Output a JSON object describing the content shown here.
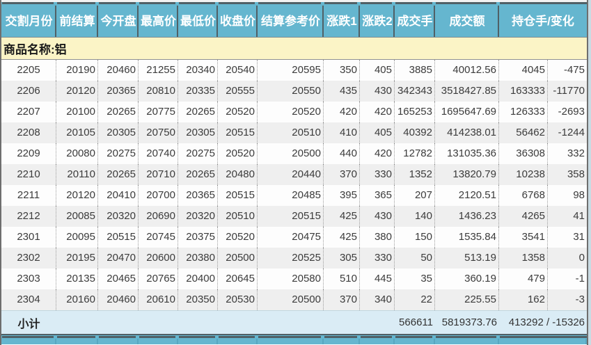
{
  "colors": {
    "header_bg": "#65b6cf",
    "header_separator": "#506066",
    "commodity_bg": "#fbf4c6",
    "row_alt_bg": "#efefef",
    "subtotal_bg": "#daecf5",
    "header_text": "#ffffff",
    "data_text": "#3b3b3b"
  },
  "table": {
    "columns": [
      {
        "label": "交割月份"
      },
      {
        "label": "前结算"
      },
      {
        "label": "今开盘"
      },
      {
        "label": "最高价"
      },
      {
        "label": "最低价"
      },
      {
        "label": "收盘价"
      },
      {
        "label": "结算参考价"
      },
      {
        "label": "涨跌1"
      },
      {
        "label": "涨跌2"
      },
      {
        "label": "成交手"
      },
      {
        "label": "成交额"
      },
      {
        "label": "持仓手/变化"
      }
    ],
    "commodity_label": "商品名称:铝",
    "rows": [
      [
        "2205",
        "20190",
        "20460",
        "21255",
        "20340",
        "20540",
        "20595",
        "350",
        "405",
        "3885",
        "40012.56",
        "4045",
        "-475"
      ],
      [
        "2206",
        "20120",
        "20365",
        "20810",
        "20335",
        "20555",
        "20550",
        "435",
        "430",
        "342343",
        "3518427.85",
        "163333",
        "-11770"
      ],
      [
        "2207",
        "20100",
        "20265",
        "20775",
        "20265",
        "20520",
        "20520",
        "420",
        "420",
        "165253",
        "1695647.69",
        "126333",
        "-2693"
      ],
      [
        "2208",
        "20105",
        "20305",
        "20750",
        "20305",
        "20515",
        "20510",
        "410",
        "405",
        "40392",
        "414238.01",
        "56462",
        "-1244"
      ],
      [
        "2209",
        "20080",
        "20275",
        "20740",
        "20275",
        "20520",
        "20500",
        "440",
        "420",
        "12782",
        "131035.36",
        "36308",
        "332"
      ],
      [
        "2210",
        "20110",
        "20265",
        "20710",
        "20265",
        "20480",
        "20440",
        "370",
        "330",
        "1352",
        "13820.79",
        "10238",
        "358"
      ],
      [
        "2211",
        "20120",
        "20410",
        "20700",
        "20365",
        "20515",
        "20485",
        "395",
        "365",
        "207",
        "2120.51",
        "6768",
        "98"
      ],
      [
        "2212",
        "20085",
        "20320",
        "20690",
        "20320",
        "20510",
        "20515",
        "425",
        "430",
        "140",
        "1436.23",
        "4265",
        "41"
      ],
      [
        "2301",
        "20095",
        "20515",
        "20745",
        "20375",
        "20520",
        "20475",
        "425",
        "380",
        "150",
        "1535.84",
        "3541",
        "31"
      ],
      [
        "2302",
        "20195",
        "20470",
        "20600",
        "20380",
        "20500",
        "20525",
        "305",
        "330",
        "50",
        "513.19",
        "1358",
        "0"
      ],
      [
        "2303",
        "20135",
        "20465",
        "20765",
        "20400",
        "20645",
        "20580",
        "510",
        "445",
        "35",
        "360.19",
        "479",
        "-1"
      ],
      [
        "2304",
        "20160",
        "20460",
        "20610",
        "20350",
        "20530",
        "20500",
        "370",
        "340",
        "22",
        "225.55",
        "162",
        "-3"
      ]
    ],
    "subtotal": {
      "label": "小计",
      "volume": "566611",
      "turnover": "5819373.76",
      "open_interest_change": "413292 / -15326"
    }
  }
}
